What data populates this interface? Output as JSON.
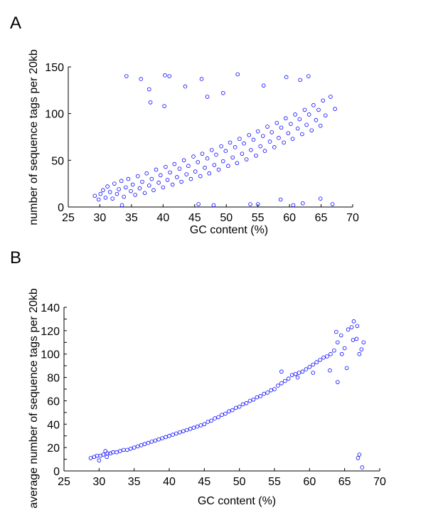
{
  "figure": {
    "panel_labels": [
      "A",
      "B"
    ]
  },
  "chart_data": [
    {
      "type": "scatter",
      "panel": "A",
      "xlabel": "GC content (%)",
      "ylabel": "number of sequence tags per 20kb",
      "xlim": [
        25,
        70
      ],
      "ylim": [
        0,
        150
      ],
      "xticks": [
        25,
        30,
        35,
        40,
        45,
        50,
        55,
        60,
        65,
        70
      ],
      "yticks": [
        0,
        50,
        100,
        150
      ],
      "marker": "open-circle",
      "color": "#0000ff",
      "grid": false,
      "series": [
        {
          "values": [
            [
              29.2,
              12
            ],
            [
              29.8,
              8
            ],
            [
              30.1,
              14
            ],
            [
              30.5,
              18
            ],
            [
              30.9,
              10
            ],
            [
              31.2,
              22
            ],
            [
              31.6,
              16
            ],
            [
              32.0,
              9
            ],
            [
              32.3,
              25
            ],
            [
              32.7,
              14
            ],
            [
              33.0,
              19
            ],
            [
              33.4,
              28
            ],
            [
              33.8,
              11
            ],
            [
              34.1,
              21
            ],
            [
              34.5,
              30
            ],
            [
              34.9,
              17
            ],
            [
              35.2,
              24
            ],
            [
              35.6,
              13
            ],
            [
              36.0,
              33
            ],
            [
              36.3,
              20
            ],
            [
              36.7,
              27
            ],
            [
              37.1,
              15
            ],
            [
              37.4,
              36
            ],
            [
              37.8,
              23
            ],
            [
              38.2,
              30
            ],
            [
              38.5,
              18
            ],
            [
              38.9,
              40
            ],
            [
              39.3,
              26
            ],
            [
              39.6,
              34
            ],
            [
              40.0,
              21
            ],
            [
              40.4,
              43
            ],
            [
              40.7,
              29
            ],
            [
              41.1,
              37
            ],
            [
              41.5,
              24
            ],
            [
              41.8,
              46
            ],
            [
              42.2,
              32
            ],
            [
              42.6,
              41
            ],
            [
              42.9,
              27
            ],
            [
              43.3,
              50
            ],
            [
              43.7,
              35
            ],
            [
              44.0,
              44
            ],
            [
              44.4,
              30
            ],
            [
              44.8,
              54
            ],
            [
              45.1,
              38
            ],
            [
              45.5,
              48
            ],
            [
              45.9,
              33
            ],
            [
              46.2,
              57
            ],
            [
              46.6,
              42
            ],
            [
              47.0,
              52
            ],
            [
              47.3,
              36
            ],
            [
              47.7,
              61
            ],
            [
              48.1,
              45
            ],
            [
              48.4,
              56
            ],
            [
              48.8,
              40
            ],
            [
              49.2,
              65
            ],
            [
              49.5,
              49
            ],
            [
              49.9,
              60
            ],
            [
              50.3,
              44
            ],
            [
              50.6,
              69
            ],
            [
              51.0,
              53
            ],
            [
              51.4,
              64
            ],
            [
              51.7,
              47
            ],
            [
              52.1,
              73
            ],
            [
              52.5,
              57
            ],
            [
              52.8,
              68
            ],
            [
              53.2,
              51
            ],
            [
              53.6,
              77
            ],
            [
              53.9,
              61
            ],
            [
              54.3,
              72
            ],
            [
              54.7,
              55
            ],
            [
              55.0,
              81
            ],
            [
              55.4,
              65
            ],
            [
              55.8,
              76
            ],
            [
              56.1,
              60
            ],
            [
              56.5,
              86
            ],
            [
              56.9,
              70
            ],
            [
              57.2,
              80
            ],
            [
              57.6,
              64
            ],
            [
              58.0,
              90
            ],
            [
              58.3,
              74
            ],
            [
              58.7,
              85
            ],
            [
              59.1,
              69
            ],
            [
              59.4,
              95
            ],
            [
              59.8,
              79
            ],
            [
              60.2,
              89
            ],
            [
              60.5,
              73
            ],
            [
              60.9,
              99
            ],
            [
              61.3,
              84
            ],
            [
              61.6,
              94
            ],
            [
              62.0,
              78
            ],
            [
              62.4,
              104
            ],
            [
              62.7,
              88
            ],
            [
              63.1,
              99
            ],
            [
              63.5,
              82
            ],
            [
              63.8,
              109
            ],
            [
              64.2,
              93
            ],
            [
              64.6,
              104
            ],
            [
              64.9,
              87
            ],
            [
              65.3,
              114
            ],
            [
              65.7,
              98
            ],
            [
              34.2,
              140
            ],
            [
              36.5,
              137
            ],
            [
              40.3,
              141
            ],
            [
              41.0,
              140
            ],
            [
              46.1,
              137
            ],
            [
              51.8,
              142
            ],
            [
              37.8,
              126
            ],
            [
              43.5,
              129
            ],
            [
              59.5,
              139
            ],
            [
              45.6,
              3
            ],
            [
              53.8,
              3
            ],
            [
              55.0,
              3
            ],
            [
              62.1,
              4
            ],
            [
              66.8,
              3
            ],
            [
              58.6,
              8
            ],
            [
              33.5,
              2
            ],
            [
              48.0,
              2
            ],
            [
              60.6,
              2
            ],
            [
              64.9,
              9
            ],
            [
              38.0,
              112
            ],
            [
              40.2,
              108
            ],
            [
              47.0,
              118
            ],
            [
              49.5,
              122
            ],
            [
              55.9,
              130
            ],
            [
              61.7,
              136
            ],
            [
              63.0,
              140
            ],
            [
              66.5,
              118
            ],
            [
              67.2,
              105
            ]
          ]
        }
      ]
    },
    {
      "type": "scatter",
      "panel": "B",
      "xlabel": "GC content (%)",
      "ylabel": "average number of sequence tags per 20kb",
      "xlim": [
        25,
        70
      ],
      "ylim": [
        0,
        140
      ],
      "xticks": [
        25,
        30,
        35,
        40,
        45,
        50,
        55,
        60,
        65,
        70
      ],
      "yticks": [
        0,
        10,
        20,
        30,
        40,
        50,
        60,
        70,
        80,
        90,
        100,
        110,
        120,
        130,
        140
      ],
      "ytick_labels_shown": [
        0,
        20,
        40,
        60,
        80,
        100,
        120,
        140
      ],
      "marker": "open-circle",
      "color": "#0000ff",
      "grid": false,
      "series": [
        {
          "values": [
            [
              28.8,
              11
            ],
            [
              29.3,
              12
            ],
            [
              29.7,
              13
            ],
            [
              30.2,
              13
            ],
            [
              30.6,
              14
            ],
            [
              30.9,
              17
            ],
            [
              31.2,
              15
            ],
            [
              31.6,
              15
            ],
            [
              32.0,
              16
            ],
            [
              32.5,
              16
            ],
            [
              33.0,
              17
            ],
            [
              33.5,
              18
            ],
            [
              34.0,
              18
            ],
            [
              34.5,
              19
            ],
            [
              35.0,
              20
            ],
            [
              35.5,
              21
            ],
            [
              36.0,
              22
            ],
            [
              36.5,
              23
            ],
            [
              37.0,
              24
            ],
            [
              37.5,
              25
            ],
            [
              38.0,
              26
            ],
            [
              38.5,
              27
            ],
            [
              39.0,
              28
            ],
            [
              39.5,
              29
            ],
            [
              40.0,
              30
            ],
            [
              40.5,
              31
            ],
            [
              41.0,
              32
            ],
            [
              41.5,
              33
            ],
            [
              42.0,
              34
            ],
            [
              42.5,
              35
            ],
            [
              43.0,
              36
            ],
            [
              43.5,
              37
            ],
            [
              44.0,
              38
            ],
            [
              44.5,
              39
            ],
            [
              45.0,
              40
            ],
            [
              45.5,
              42
            ],
            [
              46.0,
              43
            ],
            [
              46.5,
              45
            ],
            [
              47.0,
              46
            ],
            [
              47.5,
              48
            ],
            [
              48.0,
              49
            ],
            [
              48.5,
              51
            ],
            [
              49.0,
              52
            ],
            [
              49.5,
              54
            ],
            [
              50.0,
              55
            ],
            [
              50.5,
              57
            ],
            [
              51.0,
              58
            ],
            [
              51.5,
              60
            ],
            [
              52.0,
              61
            ],
            [
              52.5,
              63
            ],
            [
              53.0,
              64
            ],
            [
              53.5,
              66
            ],
            [
              54.0,
              67
            ],
            [
              54.5,
              69
            ],
            [
              55.0,
              70
            ],
            [
              55.5,
              73
            ],
            [
              56.0,
              75
            ],
            [
              56.5,
              77
            ],
            [
              57.0,
              79
            ],
            [
              57.5,
              82
            ],
            [
              58.0,
              83
            ],
            [
              58.5,
              84
            ],
            [
              59.0,
              85
            ],
            [
              59.5,
              87
            ],
            [
              60.0,
              89
            ],
            [
              60.5,
              91
            ],
            [
              61.0,
              93
            ],
            [
              61.5,
              95
            ],
            [
              62.0,
              97
            ],
            [
              62.5,
              98
            ],
            [
              63.0,
              100
            ],
            [
              63.5,
              103
            ],
            [
              64.0,
              110
            ],
            [
              64.5,
              116
            ],
            [
              65.0,
              105
            ],
            [
              65.5,
              121
            ],
            [
              66.0,
              123
            ],
            [
              66.3,
              128
            ],
            [
              66.7,
              113
            ],
            [
              67.1,
              100
            ],
            [
              67.4,
              104
            ],
            [
              67.7,
              110
            ],
            [
              64.0,
              76
            ],
            [
              65.3,
              88
            ],
            [
              66.2,
              112
            ],
            [
              66.8,
              124
            ],
            [
              64.6,
              100
            ],
            [
              63.8,
              119
            ],
            [
              56.0,
              85
            ],
            [
              58.3,
              80
            ],
            [
              60.5,
              84
            ],
            [
              62.9,
              86
            ],
            [
              66.9,
              11
            ],
            [
              67.1,
              14
            ],
            [
              67.5,
              3
            ],
            [
              30.0,
              9
            ],
            [
              31.1,
              12
            ]
          ]
        }
      ]
    }
  ]
}
